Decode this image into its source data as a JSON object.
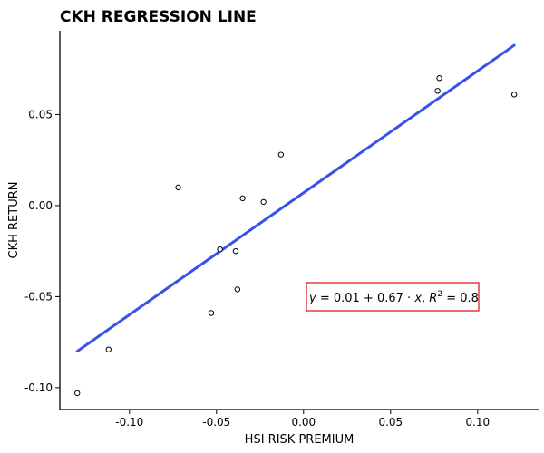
{
  "chart_data": {
    "type": "scatter",
    "title": "CKH REGRESSION LINE",
    "xlabel": "HSI RISK PREMIUM",
    "ylabel": "CKH RETURN",
    "xlim": [
      -0.14,
      0.135
    ],
    "ylim": [
      -0.112,
      0.096
    ],
    "x_ticks": [
      -0.1,
      -0.05,
      0.0,
      0.05,
      0.1
    ],
    "x_tick_labels": [
      "-0.10",
      "-0.05",
      "0.00",
      "0.05",
      "0.10"
    ],
    "y_ticks": [
      -0.1,
      -0.05,
      0.0,
      0.05
    ],
    "y_tick_labels": [
      "-0.10",
      "-0.05",
      "0.00",
      "0.05"
    ],
    "grid": false,
    "points": [
      {
        "x": -0.13,
        "y": -0.103
      },
      {
        "x": -0.112,
        "y": -0.079
      },
      {
        "x": -0.072,
        "y": 0.01
      },
      {
        "x": -0.053,
        "y": -0.059
      },
      {
        "x": -0.048,
        "y": -0.024
      },
      {
        "x": -0.039,
        "y": -0.025
      },
      {
        "x": -0.038,
        "y": -0.046
      },
      {
        "x": -0.035,
        "y": 0.004
      },
      {
        "x": -0.023,
        "y": 0.002
      },
      {
        "x": -0.013,
        "y": 0.028
      },
      {
        "x": 0.077,
        "y": 0.063
      },
      {
        "x": 0.078,
        "y": 0.07
      },
      {
        "x": 0.121,
        "y": 0.061
      }
    ],
    "regression_line": {
      "x": [
        -0.13,
        0.121
      ],
      "y": [
        -0.08,
        0.088
      ],
      "color": "#3553e8"
    },
    "annotation": {
      "y_label": "y",
      "equals": " = 0.01 + 0.67 · ",
      "x_label": "x",
      "sep": ",  ",
      "r_label": "R",
      "r_sup": "2",
      "r_value": " = 0.8",
      "box_color": "#e02020"
    }
  }
}
